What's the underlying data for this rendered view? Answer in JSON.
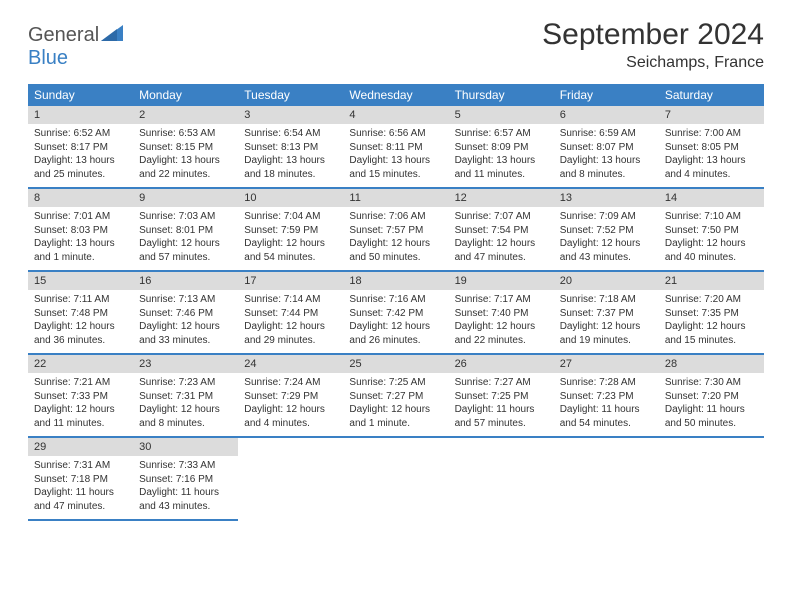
{
  "logo": {
    "text1": "General",
    "text2": "Blue"
  },
  "header": {
    "month_title": "September 2024",
    "location": "Seichamps, France"
  },
  "colors": {
    "accent": "#3a80c4",
    "daynum_bg": "#dcdcdc",
    "text": "#333333",
    "bg": "#ffffff"
  },
  "dow": [
    "Sunday",
    "Monday",
    "Tuesday",
    "Wednesday",
    "Thursday",
    "Friday",
    "Saturday"
  ],
  "weeks": [
    [
      {
        "n": "1",
        "sr": "Sunrise: 6:52 AM",
        "ss": "Sunset: 8:17 PM",
        "d1": "Daylight: 13 hours",
        "d2": "and 25 minutes."
      },
      {
        "n": "2",
        "sr": "Sunrise: 6:53 AM",
        "ss": "Sunset: 8:15 PM",
        "d1": "Daylight: 13 hours",
        "d2": "and 22 minutes."
      },
      {
        "n": "3",
        "sr": "Sunrise: 6:54 AM",
        "ss": "Sunset: 8:13 PM",
        "d1": "Daylight: 13 hours",
        "d2": "and 18 minutes."
      },
      {
        "n": "4",
        "sr": "Sunrise: 6:56 AM",
        "ss": "Sunset: 8:11 PM",
        "d1": "Daylight: 13 hours",
        "d2": "and 15 minutes."
      },
      {
        "n": "5",
        "sr": "Sunrise: 6:57 AM",
        "ss": "Sunset: 8:09 PM",
        "d1": "Daylight: 13 hours",
        "d2": "and 11 minutes."
      },
      {
        "n": "6",
        "sr": "Sunrise: 6:59 AM",
        "ss": "Sunset: 8:07 PM",
        "d1": "Daylight: 13 hours",
        "d2": "and 8 minutes."
      },
      {
        "n": "7",
        "sr": "Sunrise: 7:00 AM",
        "ss": "Sunset: 8:05 PM",
        "d1": "Daylight: 13 hours",
        "d2": "and 4 minutes."
      }
    ],
    [
      {
        "n": "8",
        "sr": "Sunrise: 7:01 AM",
        "ss": "Sunset: 8:03 PM",
        "d1": "Daylight: 13 hours",
        "d2": "and 1 minute."
      },
      {
        "n": "9",
        "sr": "Sunrise: 7:03 AM",
        "ss": "Sunset: 8:01 PM",
        "d1": "Daylight: 12 hours",
        "d2": "and 57 minutes."
      },
      {
        "n": "10",
        "sr": "Sunrise: 7:04 AM",
        "ss": "Sunset: 7:59 PM",
        "d1": "Daylight: 12 hours",
        "d2": "and 54 minutes."
      },
      {
        "n": "11",
        "sr": "Sunrise: 7:06 AM",
        "ss": "Sunset: 7:57 PM",
        "d1": "Daylight: 12 hours",
        "d2": "and 50 minutes."
      },
      {
        "n": "12",
        "sr": "Sunrise: 7:07 AM",
        "ss": "Sunset: 7:54 PM",
        "d1": "Daylight: 12 hours",
        "d2": "and 47 minutes."
      },
      {
        "n": "13",
        "sr": "Sunrise: 7:09 AM",
        "ss": "Sunset: 7:52 PM",
        "d1": "Daylight: 12 hours",
        "d2": "and 43 minutes."
      },
      {
        "n": "14",
        "sr": "Sunrise: 7:10 AM",
        "ss": "Sunset: 7:50 PM",
        "d1": "Daylight: 12 hours",
        "d2": "and 40 minutes."
      }
    ],
    [
      {
        "n": "15",
        "sr": "Sunrise: 7:11 AM",
        "ss": "Sunset: 7:48 PM",
        "d1": "Daylight: 12 hours",
        "d2": "and 36 minutes."
      },
      {
        "n": "16",
        "sr": "Sunrise: 7:13 AM",
        "ss": "Sunset: 7:46 PM",
        "d1": "Daylight: 12 hours",
        "d2": "and 33 minutes."
      },
      {
        "n": "17",
        "sr": "Sunrise: 7:14 AM",
        "ss": "Sunset: 7:44 PM",
        "d1": "Daylight: 12 hours",
        "d2": "and 29 minutes."
      },
      {
        "n": "18",
        "sr": "Sunrise: 7:16 AM",
        "ss": "Sunset: 7:42 PM",
        "d1": "Daylight: 12 hours",
        "d2": "and 26 minutes."
      },
      {
        "n": "19",
        "sr": "Sunrise: 7:17 AM",
        "ss": "Sunset: 7:40 PM",
        "d1": "Daylight: 12 hours",
        "d2": "and 22 minutes."
      },
      {
        "n": "20",
        "sr": "Sunrise: 7:18 AM",
        "ss": "Sunset: 7:37 PM",
        "d1": "Daylight: 12 hours",
        "d2": "and 19 minutes."
      },
      {
        "n": "21",
        "sr": "Sunrise: 7:20 AM",
        "ss": "Sunset: 7:35 PM",
        "d1": "Daylight: 12 hours",
        "d2": "and 15 minutes."
      }
    ],
    [
      {
        "n": "22",
        "sr": "Sunrise: 7:21 AM",
        "ss": "Sunset: 7:33 PM",
        "d1": "Daylight: 12 hours",
        "d2": "and 11 minutes."
      },
      {
        "n": "23",
        "sr": "Sunrise: 7:23 AM",
        "ss": "Sunset: 7:31 PM",
        "d1": "Daylight: 12 hours",
        "d2": "and 8 minutes."
      },
      {
        "n": "24",
        "sr": "Sunrise: 7:24 AM",
        "ss": "Sunset: 7:29 PM",
        "d1": "Daylight: 12 hours",
        "d2": "and 4 minutes."
      },
      {
        "n": "25",
        "sr": "Sunrise: 7:25 AM",
        "ss": "Sunset: 7:27 PM",
        "d1": "Daylight: 12 hours",
        "d2": "and 1 minute."
      },
      {
        "n": "26",
        "sr": "Sunrise: 7:27 AM",
        "ss": "Sunset: 7:25 PM",
        "d1": "Daylight: 11 hours",
        "d2": "and 57 minutes."
      },
      {
        "n": "27",
        "sr": "Sunrise: 7:28 AM",
        "ss": "Sunset: 7:23 PM",
        "d1": "Daylight: 11 hours",
        "d2": "and 54 minutes."
      },
      {
        "n": "28",
        "sr": "Sunrise: 7:30 AM",
        "ss": "Sunset: 7:20 PM",
        "d1": "Daylight: 11 hours",
        "d2": "and 50 minutes."
      }
    ],
    [
      {
        "n": "29",
        "sr": "Sunrise: 7:31 AM",
        "ss": "Sunset: 7:18 PM",
        "d1": "Daylight: 11 hours",
        "d2": "and 47 minutes."
      },
      {
        "n": "30",
        "sr": "Sunrise: 7:33 AM",
        "ss": "Sunset: 7:16 PM",
        "d1": "Daylight: 11 hours",
        "d2": "and 43 minutes."
      },
      null,
      null,
      null,
      null,
      null
    ]
  ]
}
